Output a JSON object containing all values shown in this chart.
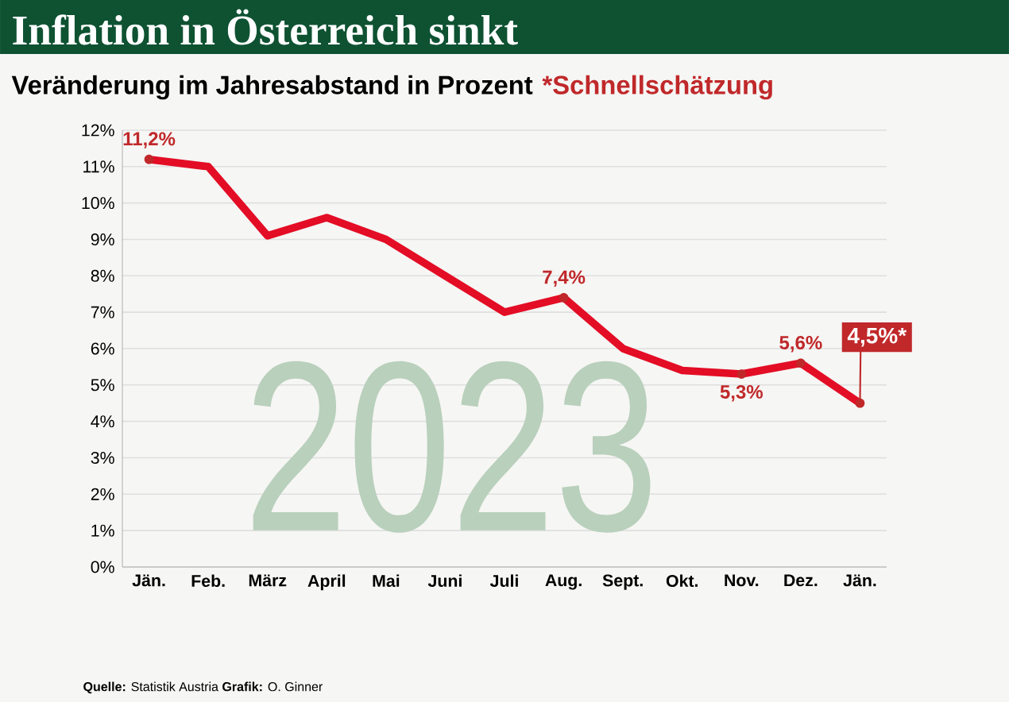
{
  "chart_data": {
    "type": "line",
    "title": "Inflation in Österreich sinkt",
    "subtitle": "Veränderung im Jahresabstand in Prozent",
    "annotations": [
      "*Schnellschätzung",
      "2023",
      "**Quelle:** Statistik Austria **Grafik:** O. Ginner"
    ],
    "categories": [
      "Jän.",
      "Feb.",
      "März",
      "April",
      "Mai",
      "Juni",
      "Juli",
      "Aug.",
      "Sept.",
      "Okt.",
      "Nov.",
      "Dez.",
      "Jän."
    ],
    "series": [
      {
        "color": "#e30d25",
        "values": [
          11.2,
          11.0,
          9.1,
          9.6,
          9.0,
          8.0,
          7.0,
          7.4,
          6.0,
          5.4,
          5.3,
          5.6,
          4.5
        ],
        "value_labels": [
          "11,2%",
          null,
          null,
          null,
          null,
          null,
          null,
          "7,4%",
          null,
          null,
          "5,3%",
          "5,6%",
          "4,5%*"
        ]
      }
    ],
    "ylim": [
      0,
      12
    ],
    "yticks": [
      {
        "value": 0,
        "label": "0%"
      },
      {
        "value": 1,
        "label": "1%"
      },
      {
        "value": 2,
        "label": "2%"
      },
      {
        "value": 3,
        "label": "3%"
      },
      {
        "value": 4,
        "label": "4%"
      },
      {
        "value": 5,
        "label": "5%"
      },
      {
        "value": 6,
        "label": "6%"
      },
      {
        "value": 7,
        "label": "7%"
      },
      {
        "value": 8,
        "label": "8%"
      },
      {
        "value": 9,
        "label": "9%"
      },
      {
        "value": 10,
        "label": "10%"
      },
      {
        "value": 11,
        "label": "11%"
      },
      {
        "value": 12,
        "label": "12%"
      }
    ],
    "grid": "y"
  }
}
